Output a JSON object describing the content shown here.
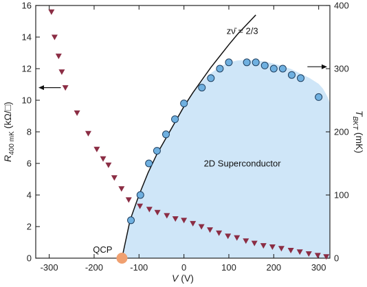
{
  "chart_data": {
    "type": "scatter",
    "x_axis": {
      "label_var": "V",
      "label_unit": " (V)",
      "range": [
        -330,
        325
      ],
      "ticks": [
        -300,
        -200,
        -100,
        0,
        100,
        200,
        300
      ],
      "tick_labels": [
        "-300",
        "-200",
        "-100",
        "0",
        "100",
        "200",
        "300"
      ]
    },
    "y_left": {
      "label_var": "R",
      "label_sub": "400 mK",
      "label_unit": " (kΩ/□)",
      "range": [
        0,
        16
      ],
      "ticks": [
        0,
        2,
        4,
        6,
        8,
        10,
        12,
        14,
        16
      ],
      "tick_labels": [
        "0",
        "2",
        "4",
        "6",
        "8",
        "10",
        "12",
        "14",
        "16"
      ]
    },
    "y_right": {
      "label_var": "T",
      "label_sub": "BKT",
      "label_unit": " (mK)",
      "range": [
        0,
        400
      ],
      "ticks": [
        0,
        100,
        200,
        300,
        400
      ],
      "tick_labels": [
        "0",
        "100",
        "200",
        "300",
        "400"
      ]
    },
    "series": [
      {
        "key": "resistance",
        "axis": "left",
        "marker": "triangle-down",
        "color": "#8b2d44",
        "points": [
          [
            -295,
            15.6
          ],
          [
            -288,
            14.0
          ],
          [
            -279,
            12.8
          ],
          [
            -272,
            11.8
          ],
          [
            -264,
            10.8
          ],
          [
            -238,
            9.2
          ],
          [
            -213,
            7.9
          ],
          [
            -194,
            6.9
          ],
          [
            -180,
            6.3
          ],
          [
            -168,
            5.9
          ],
          [
            -155,
            5.1
          ],
          [
            -139,
            4.4
          ],
          [
            -123,
            3.7
          ],
          [
            -98,
            3.3
          ],
          [
            -77,
            3.1
          ],
          [
            -59,
            2.9
          ],
          [
            -38,
            2.7
          ],
          [
            -19,
            2.5
          ],
          [
            0,
            2.4
          ],
          [
            20,
            2.2
          ],
          [
            39,
            2.0
          ],
          [
            58,
            1.8
          ],
          [
            78,
            1.6
          ],
          [
            98,
            1.4
          ],
          [
            118,
            1.3
          ],
          [
            138,
            1.1
          ],
          [
            157,
            0.95
          ],
          [
            177,
            0.8
          ],
          [
            197,
            0.72
          ],
          [
            217,
            0.62
          ],
          [
            238,
            0.5
          ],
          [
            258,
            0.4
          ],
          [
            278,
            0.28
          ],
          [
            298,
            0.18
          ],
          [
            317,
            0.1
          ]
        ]
      },
      {
        "key": "tbkt",
        "axis": "right",
        "marker": "circle",
        "color": "#6fb0e0",
        "edge": "#1f3f5f",
        "points": [
          [
            -118,
            60
          ],
          [
            -97,
            100
          ],
          [
            -78,
            150
          ],
          [
            -60,
            170
          ],
          [
            -40,
            196
          ],
          [
            -20,
            220
          ],
          [
            0,
            245
          ],
          [
            40,
            270
          ],
          [
            60,
            285
          ],
          [
            80,
            300
          ],
          [
            100,
            310
          ],
          [
            140,
            310
          ],
          [
            160,
            310
          ],
          [
            180,
            305
          ],
          [
            200,
            300
          ],
          [
            220,
            300
          ],
          [
            240,
            290
          ],
          [
            260,
            285
          ],
          [
            300,
            255
          ]
        ]
      }
    ],
    "fit_curve": {
      "label": "zν̄ = 2/3",
      "start_x": -138,
      "points": [
        [
          -138,
          0
        ],
        [
          -120,
          60
        ],
        [
          -100,
          100
        ],
        [
          -80,
          135
        ],
        [
          -60,
          165
        ],
        [
          -40,
          190
        ],
        [
          -20,
          215
        ],
        [
          0,
          240
        ],
        [
          20,
          262
        ],
        [
          40,
          282
        ],
        [
          60,
          302
        ],
        [
          80,
          320
        ],
        [
          100,
          338
        ],
        [
          120,
          355
        ],
        [
          140,
          370
        ],
        [
          160,
          385
        ]
      ]
    },
    "shaded_region": {
      "label": "2D Superconductor",
      "color": "#cfe6f8",
      "boundary": [
        [
          -138,
          0
        ],
        [
          -120,
          60
        ],
        [
          -100,
          100
        ],
        [
          -80,
          135
        ],
        [
          -60,
          165
        ],
        [
          -40,
          190
        ],
        [
          -20,
          215
        ],
        [
          0,
          240
        ],
        [
          20,
          262
        ],
        [
          40,
          280
        ],
        [
          60,
          293
        ],
        [
          80,
          303
        ],
        [
          100,
          310
        ],
        [
          120,
          313
        ],
        [
          140,
          314
        ],
        [
          160,
          313
        ],
        [
          180,
          311
        ],
        [
          200,
          308
        ],
        [
          220,
          304
        ],
        [
          240,
          299
        ],
        [
          260,
          292
        ],
        [
          280,
          285
        ],
        [
          300,
          276
        ],
        [
          310,
          268
        ],
        [
          320,
          255
        ],
        [
          325,
          245
        ]
      ]
    },
    "annotations": {
      "qcp_label": "QCP",
      "qcp_x": -138,
      "qcp_color": "#f0a070",
      "fit_label": "zν̄ = 2/3",
      "region_label": "2D Superconductor",
      "left_arrow_at": [
        -265,
        10.8
      ],
      "right_arrow_at": [
        275,
        290
      ]
    }
  }
}
